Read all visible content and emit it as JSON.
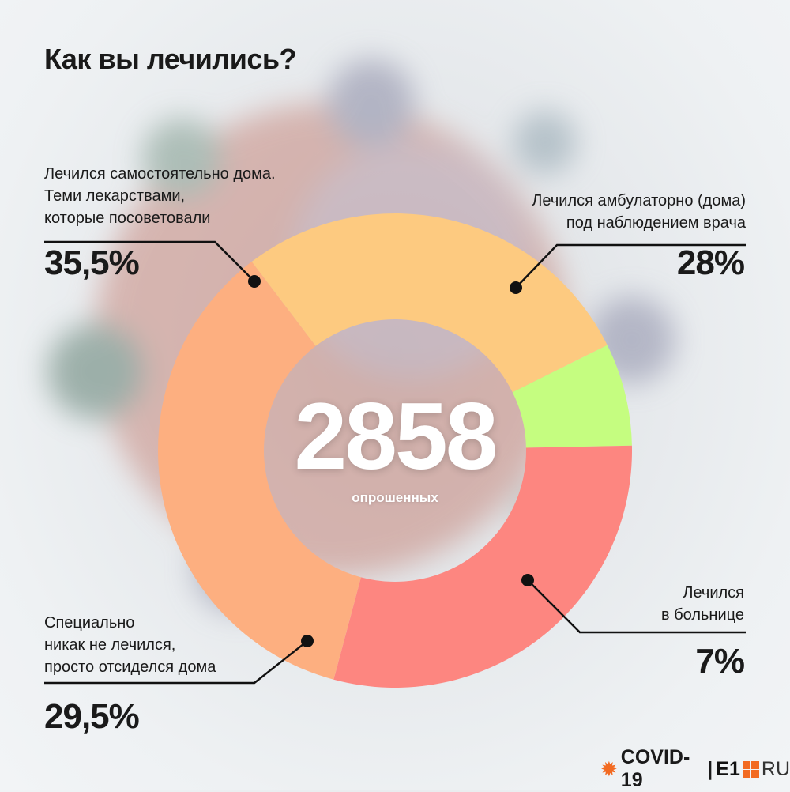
{
  "title": "Как вы лечились?",
  "center": {
    "value": "2858",
    "caption": "опрошенных"
  },
  "colors": {
    "self_home": "#fdaf80",
    "outpatient": "#fdca80",
    "hospital": "#c5fd80",
    "no_treatment": "#fd8680",
    "leader_line": "#111111"
  },
  "branding": {
    "covid": "COVID-19",
    "separator": "|",
    "e1": "E1",
    "ru": "RU"
  },
  "chart_data": {
    "type": "pie",
    "variant": "donut",
    "title": "Как вы лечились?",
    "total_respondents": 2858,
    "slices": [
      {
        "label_lines": [
          "Лечился самостоятельно дома.",
          "Теми лекарствами,",
          "которые посоветовали"
        ],
        "value": 35.5,
        "display": "35,5%",
        "color": "#fdaf80"
      },
      {
        "label_lines": [
          "Лечился амбулаторно (дома)",
          "под наблюдением врача"
        ],
        "value": 28,
        "display": "28%",
        "color": "#fdca80"
      },
      {
        "label_lines": [
          "Лечился",
          "в больнице"
        ],
        "value": 7,
        "display": "7%",
        "color": "#c5fd80"
      },
      {
        "label_lines": [
          "Специально",
          "никак не лечился,",
          "просто отсиделся дома"
        ],
        "value": 29.5,
        "display": "29,5%",
        "color": "#fd8680"
      }
    ]
  }
}
